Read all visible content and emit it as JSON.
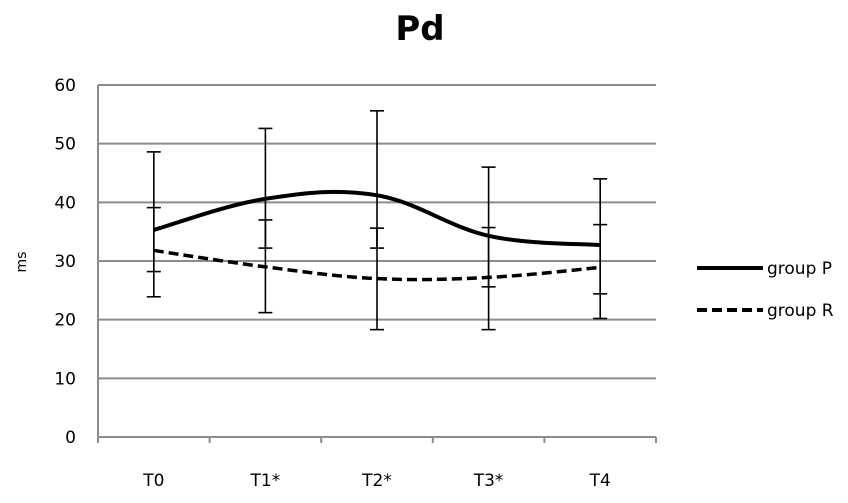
{
  "chart_data": {
    "type": "line",
    "title": "Pd",
    "xlabel": "",
    "ylabel": "ms",
    "categories": [
      "T0",
      "T1*",
      "T2*",
      "T3*",
      "T4"
    ],
    "ylim": [
      0,
      60
    ],
    "yticks": [
      0,
      10,
      20,
      30,
      40,
      50,
      60
    ],
    "grid": true,
    "legend_position": "right",
    "series": [
      {
        "name": "group P",
        "style": "solid",
        "values": [
          35.3,
          40.6,
          41.2,
          34.3,
          32.7
        ],
        "error_low": [
          28.2,
          32.2,
          32.2,
          25.6,
          20.2
        ],
        "error_high": [
          48.6,
          52.6,
          55.6,
          46.0,
          44.0
        ]
      },
      {
        "name": "group R",
        "style": "dashed",
        "values": [
          31.8,
          29.0,
          27.0,
          27.2,
          28.9
        ],
        "error_low": [
          23.9,
          21.2,
          18.3,
          18.3,
          24.4
        ],
        "error_high": [
          39.1,
          37.0,
          35.6,
          35.7,
          36.2
        ]
      }
    ],
    "colors": {
      "lines": "#000000",
      "grid": "#8c8c8c",
      "axis": "#8c8c8c"
    }
  }
}
